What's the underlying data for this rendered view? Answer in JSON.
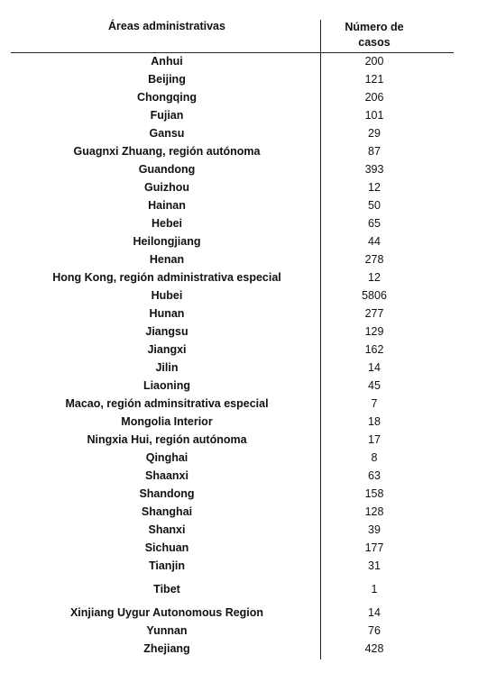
{
  "header": {
    "region_label": "Áreas administrativas",
    "count_label_line1": "Número de",
    "count_label_line2": "casos"
  },
  "rows": [
    {
      "region": "Anhui",
      "cases": "200"
    },
    {
      "region": "Beijing",
      "cases": "121"
    },
    {
      "region": "Chongqing",
      "cases": "206"
    },
    {
      "region": "Fujian",
      "cases": "101"
    },
    {
      "region": "Gansu",
      "cases": "29"
    },
    {
      "region": "Guagnxi  Zhuang, región autónoma",
      "cases": "87"
    },
    {
      "region": "Guandong",
      "cases": "393"
    },
    {
      "region": "Guizhou",
      "cases": "12"
    },
    {
      "region": "Hainan",
      "cases": "50"
    },
    {
      "region": "Hebei",
      "cases": "65"
    },
    {
      "region": "Heilongjiang",
      "cases": "44"
    },
    {
      "region": "Henan",
      "cases": "278"
    },
    {
      "region": "Hong Kong, región administrativa especial",
      "cases": "12"
    },
    {
      "region": "Hubei",
      "cases": "5806"
    },
    {
      "region": "Hunan",
      "cases": "277"
    },
    {
      "region": "Jiangsu",
      "cases": "129"
    },
    {
      "region": "Jiangxi",
      "cases": "162"
    },
    {
      "region": "Jilin",
      "cases": "14"
    },
    {
      "region": "Liaoning",
      "cases": "45"
    },
    {
      "region": "Macao, región adminsitrativa especial",
      "cases": "7"
    },
    {
      "region": "Mongolia Interior",
      "cases": "18"
    },
    {
      "region": "Ningxia Hui, región autónoma",
      "cases": "17"
    },
    {
      "region": "Qinghai",
      "cases": "8"
    },
    {
      "region": "Shaanxi",
      "cases": "63"
    },
    {
      "region": "Shandong",
      "cases": "158"
    },
    {
      "region": "Shanghai",
      "cases": "128"
    },
    {
      "region": "Shanxi",
      "cases": "39"
    },
    {
      "region": "Sichuan",
      "cases": "177"
    },
    {
      "region": "Tianjin",
      "cases": "31"
    },
    {
      "region": "Tibet",
      "cases": "1"
    },
    {
      "region": "Xinjiang Uygur Autonomous Region",
      "cases": "14"
    },
    {
      "region": "Yunnan",
      "cases": "76"
    },
    {
      "region": "Zhejiang",
      "cases": "428"
    }
  ]
}
